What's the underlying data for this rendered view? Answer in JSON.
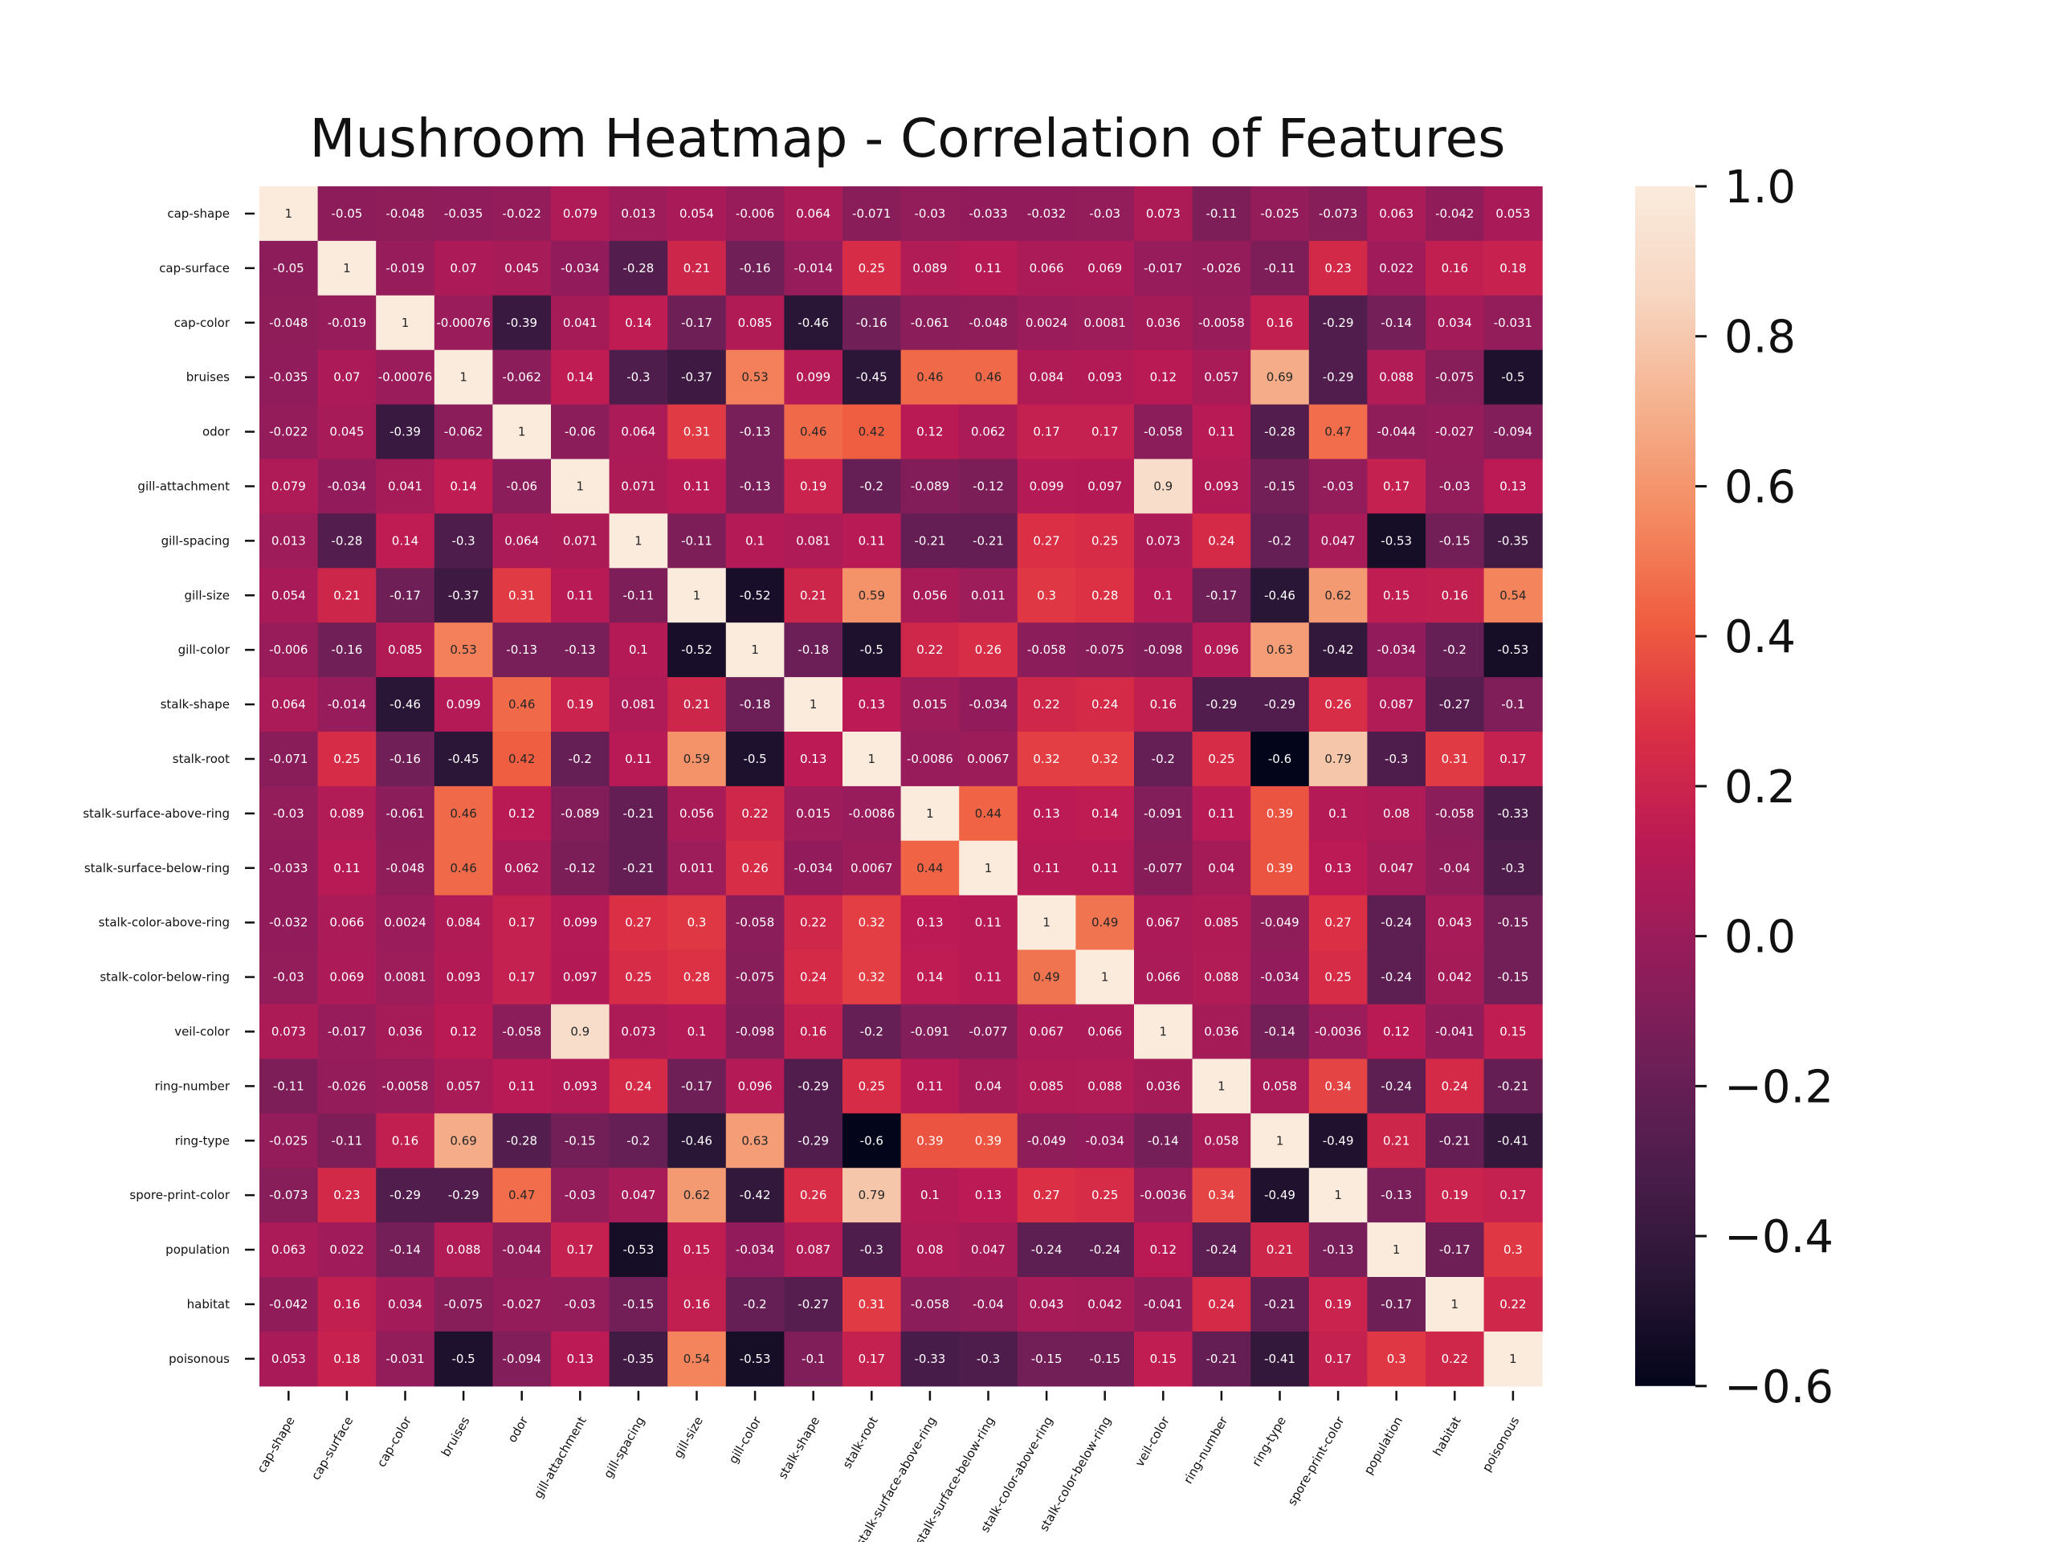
{
  "chart_data": {
    "type": "heatmap",
    "title": "Mushroom Heatmap - Correlation of Features",
    "xlabel": "",
    "ylabel": "",
    "categories": [
      "cap-shape",
      "cap-surface",
      "cap-color",
      "bruises",
      "odor",
      "gill-attachment",
      "gill-spacing",
      "gill-size",
      "gill-color",
      "stalk-shape",
      "stalk-root",
      "stalk-surface-above-ring",
      "stalk-surface-below-ring",
      "stalk-color-above-ring",
      "stalk-color-below-ring",
      "veil-color",
      "ring-number",
      "ring-type",
      "spore-print-color",
      "population",
      "habitat",
      "poisonous"
    ],
    "values": [
      [
        "1",
        "-0.05",
        "-0.048",
        "-0.035",
        "-0.022",
        "0.079",
        "0.013",
        "0.054",
        "-0.006",
        "0.064",
        "-0.071",
        "-0.03",
        "-0.033",
        "-0.032",
        "-0.03",
        "0.073",
        "-0.11",
        "-0.025",
        "-0.073",
        "0.063",
        "-0.042",
        "0.053"
      ],
      [
        "-0.05",
        "1",
        "-0.019",
        "0.07",
        "0.045",
        "-0.034",
        "-0.28",
        "0.21",
        "-0.16",
        "-0.014",
        "0.25",
        "0.089",
        "0.11",
        "0.066",
        "0.069",
        "-0.017",
        "-0.026",
        "-0.11",
        "0.23",
        "0.022",
        "0.16",
        "0.18"
      ],
      [
        "-0.048",
        "-0.019",
        "1",
        "-0.00076",
        "-0.39",
        "0.041",
        "0.14",
        "-0.17",
        "0.085",
        "-0.46",
        "-0.16",
        "-0.061",
        "-0.048",
        "0.0024",
        "0.0081",
        "0.036",
        "-0.0058",
        "0.16",
        "-0.29",
        "-0.14",
        "0.034",
        "-0.031"
      ],
      [
        "-0.035",
        "0.07",
        "-0.00076",
        "1",
        "-0.062",
        "0.14",
        "-0.3",
        "-0.37",
        "0.53",
        "0.099",
        "-0.45",
        "0.46",
        "0.46",
        "0.084",
        "0.093",
        "0.12",
        "0.057",
        "0.69",
        "-0.29",
        "0.088",
        "-0.075",
        "-0.5"
      ],
      [
        "-0.022",
        "0.045",
        "-0.39",
        "-0.062",
        "1",
        "-0.06",
        "0.064",
        "0.31",
        "-0.13",
        "0.46",
        "0.42",
        "0.12",
        "0.062",
        "0.17",
        "0.17",
        "-0.058",
        "0.11",
        "-0.28",
        "0.47",
        "-0.044",
        "-0.027",
        "-0.094"
      ],
      [
        "0.079",
        "-0.034",
        "0.041",
        "0.14",
        "-0.06",
        "1",
        "0.071",
        "0.11",
        "-0.13",
        "0.19",
        "-0.2",
        "-0.089",
        "-0.12",
        "0.099",
        "0.097",
        "0.9",
        "0.093",
        "-0.15",
        "-0.03",
        "0.17",
        "-0.03",
        "0.13"
      ],
      [
        "0.013",
        "-0.28",
        "0.14",
        "-0.3",
        "0.064",
        "0.071",
        "1",
        "-0.11",
        "0.1",
        "0.081",
        "0.11",
        "-0.21",
        "-0.21",
        "0.27",
        "0.25",
        "0.073",
        "0.24",
        "-0.2",
        "0.047",
        "-0.53",
        "-0.15",
        "-0.35"
      ],
      [
        "0.054",
        "0.21",
        "-0.17",
        "-0.37",
        "0.31",
        "0.11",
        "-0.11",
        "1",
        "-0.52",
        "0.21",
        "0.59",
        "0.056",
        "0.011",
        "0.3",
        "0.28",
        "0.1",
        "-0.17",
        "-0.46",
        "0.62",
        "0.15",
        "0.16",
        "0.54"
      ],
      [
        "-0.006",
        "-0.16",
        "0.085",
        "0.53",
        "-0.13",
        "-0.13",
        "0.1",
        "-0.52",
        "1",
        "-0.18",
        "-0.5",
        "0.22",
        "0.26",
        "-0.058",
        "-0.075",
        "-0.098",
        "0.096",
        "0.63",
        "-0.42",
        "-0.034",
        "-0.2",
        "-0.53"
      ],
      [
        "0.064",
        "-0.014",
        "-0.46",
        "0.099",
        "0.46",
        "0.19",
        "0.081",
        "0.21",
        "-0.18",
        "1",
        "0.13",
        "0.015",
        "-0.034",
        "0.22",
        "0.24",
        "0.16",
        "-0.29",
        "-0.29",
        "0.26",
        "0.087",
        "-0.27",
        "-0.1"
      ],
      [
        "-0.071",
        "0.25",
        "-0.16",
        "-0.45",
        "0.42",
        "-0.2",
        "0.11",
        "0.59",
        "-0.5",
        "0.13",
        "1",
        "-0.0086",
        "0.0067",
        "0.32",
        "0.32",
        "-0.2",
        "0.25",
        "-0.6",
        "0.79",
        "-0.3",
        "0.31",
        "0.17"
      ],
      [
        "-0.03",
        "0.089",
        "-0.061",
        "0.46",
        "0.12",
        "-0.089",
        "-0.21",
        "0.056",
        "0.22",
        "0.015",
        "-0.0086",
        "1",
        "0.44",
        "0.13",
        "0.14",
        "-0.091",
        "0.11",
        "0.39",
        "0.1",
        "0.08",
        "-0.058",
        "-0.33"
      ],
      [
        "-0.033",
        "0.11",
        "-0.048",
        "0.46",
        "0.062",
        "-0.12",
        "-0.21",
        "0.011",
        "0.26",
        "-0.034",
        "0.0067",
        "0.44",
        "1",
        "0.11",
        "0.11",
        "-0.077",
        "0.04",
        "0.39",
        "0.13",
        "0.047",
        "-0.04",
        "-0.3"
      ],
      [
        "-0.032",
        "0.066",
        "0.0024",
        "0.084",
        "0.17",
        "0.099",
        "0.27",
        "0.3",
        "-0.058",
        "0.22",
        "0.32",
        "0.13",
        "0.11",
        "1",
        "0.49",
        "0.067",
        "0.085",
        "-0.049",
        "0.27",
        "-0.24",
        "0.043",
        "-0.15"
      ],
      [
        "-0.03",
        "0.069",
        "0.0081",
        "0.093",
        "0.17",
        "0.097",
        "0.25",
        "0.28",
        "-0.075",
        "0.24",
        "0.32",
        "0.14",
        "0.11",
        "0.49",
        "1",
        "0.066",
        "0.088",
        "-0.034",
        "0.25",
        "-0.24",
        "0.042",
        "-0.15"
      ],
      [
        "0.073",
        "-0.017",
        "0.036",
        "0.12",
        "-0.058",
        "0.9",
        "0.073",
        "0.1",
        "-0.098",
        "0.16",
        "-0.2",
        "-0.091",
        "-0.077",
        "0.067",
        "0.066",
        "1",
        "0.036",
        "-0.14",
        "-0.0036",
        "0.12",
        "-0.041",
        "0.15"
      ],
      [
        "-0.11",
        "-0.026",
        "-0.0058",
        "0.057",
        "0.11",
        "0.093",
        "0.24",
        "-0.17",
        "0.096",
        "-0.29",
        "0.25",
        "0.11",
        "0.04",
        "0.085",
        "0.088",
        "0.036",
        "1",
        "0.058",
        "0.34",
        "-0.24",
        "0.24",
        "-0.21"
      ],
      [
        "-0.025",
        "-0.11",
        "0.16",
        "0.69",
        "-0.28",
        "-0.15",
        "-0.2",
        "-0.46",
        "0.63",
        "-0.29",
        "-0.6",
        "0.39",
        "0.39",
        "-0.049",
        "-0.034",
        "-0.14",
        "0.058",
        "1",
        "-0.49",
        "0.21",
        "-0.21",
        "-0.41"
      ],
      [
        "-0.073",
        "0.23",
        "-0.29",
        "-0.29",
        "0.47",
        "-0.03",
        "0.047",
        "0.62",
        "-0.42",
        "0.26",
        "0.79",
        "0.1",
        "0.13",
        "0.27",
        "0.25",
        "-0.0036",
        "0.34",
        "-0.49",
        "1",
        "-0.13",
        "0.19",
        "0.17"
      ],
      [
        "0.063",
        "0.022",
        "-0.14",
        "0.088",
        "-0.044",
        "0.17",
        "-0.53",
        "0.15",
        "-0.034",
        "0.087",
        "-0.3",
        "0.08",
        "0.047",
        "-0.24",
        "-0.24",
        "0.12",
        "-0.24",
        "0.21",
        "-0.13",
        "1",
        "-0.17",
        "0.3"
      ],
      [
        "-0.042",
        "0.16",
        "0.034",
        "-0.075",
        "-0.027",
        "-0.03",
        "-0.15",
        "0.16",
        "-0.2",
        "-0.27",
        "0.31",
        "-0.058",
        "-0.04",
        "0.043",
        "0.042",
        "-0.041",
        "0.24",
        "-0.21",
        "0.19",
        "-0.17",
        "1",
        "0.22"
      ],
      [
        "0.053",
        "0.18",
        "-0.031",
        "-0.5",
        "-0.094",
        "0.13",
        "-0.35",
        "0.54",
        "-0.53",
        "-0.1",
        "0.17",
        "-0.33",
        "-0.3",
        "-0.15",
        "-0.15",
        "0.15",
        "-0.21",
        "-0.41",
        "0.17",
        "0.3",
        "0.22",
        "1"
      ]
    ],
    "colorbar": {
      "range": [
        -0.6,
        1.0
      ],
      "ticks": [
        "1.0",
        "0.8",
        "0.6",
        "0.4",
        "0.2",
        "0.0",
        "−0.2",
        "−0.4",
        "−0.6"
      ],
      "tick_values": [
        1.0,
        0.8,
        0.6,
        0.4,
        0.2,
        0.0,
        -0.2,
        -0.4,
        -0.6
      ]
    },
    "colormap": "rocket",
    "colormap_stops": [
      "#03051a",
      "#2a1636",
      "#4c1d4b",
      "#6f1f57",
      "#961c5b",
      "#bb1a54",
      "#db2f45",
      "#ef5d40",
      "#f48b62",
      "#f5b28f",
      "#f7d6c1",
      "#faebdd"
    ],
    "grid": false
  }
}
